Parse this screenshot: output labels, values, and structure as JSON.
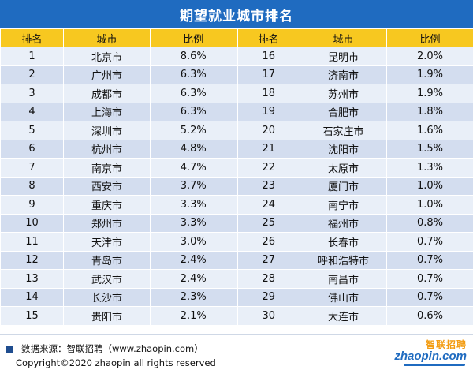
{
  "title": "期望就业城市排名",
  "headers": [
    "排名",
    "城市",
    "比例",
    "排名",
    "城市",
    "比例"
  ],
  "rows": [
    [
      "1",
      "北京市",
      "8.6%",
      "16",
      "昆明市",
      "2.0%"
    ],
    [
      "2",
      "广州市",
      "6.3%",
      "17",
      "济南市",
      "1.9%"
    ],
    [
      "3",
      "成都市",
      "6.3%",
      "18",
      "苏州市",
      "1.9%"
    ],
    [
      "4",
      "上海市",
      "6.3%",
      "19",
      "合肥市",
      "1.8%"
    ],
    [
      "5",
      "深圳市",
      "5.2%",
      "20",
      "石家庄市",
      "1.6%"
    ],
    [
      "6",
      "杭州市",
      "4.8%",
      "21",
      "沈阳市",
      "1.5%"
    ],
    [
      "7",
      "南京市",
      "4.7%",
      "22",
      "太原市",
      "1.3%"
    ],
    [
      "8",
      "西安市",
      "3.7%",
      "23",
      "厦门市",
      "1.0%"
    ],
    [
      "9",
      "重庆市",
      "3.3%",
      "24",
      "南宁市",
      "1.0%"
    ],
    [
      "10",
      "郑州市",
      "3.3%",
      "25",
      "福州市",
      "0.8%"
    ],
    [
      "11",
      "天津市",
      "3.0%",
      "26",
      "长春市",
      "0.7%"
    ],
    [
      "12",
      "青岛市",
      "2.4%",
      "27",
      "呼和浩特市",
      "0.7%"
    ],
    [
      "13",
      "武汉市",
      "2.4%",
      "28",
      "南昌市",
      "0.7%"
    ],
    [
      "14",
      "长沙市",
      "2.3%",
      "29",
      "佛山市",
      "0.7%"
    ],
    [
      "15",
      "贵阳市",
      "2.1%",
      "30",
      "大连市",
      "0.6%"
    ]
  ],
  "footer": {
    "source": "数据来源：智联招聘（www.zhaopin.com）",
    "copyright": "Copyright©2020 zhaopin all rights reserved"
  },
  "logo": {
    "cn": "智联招聘",
    "en": "zhaopin.com"
  }
}
